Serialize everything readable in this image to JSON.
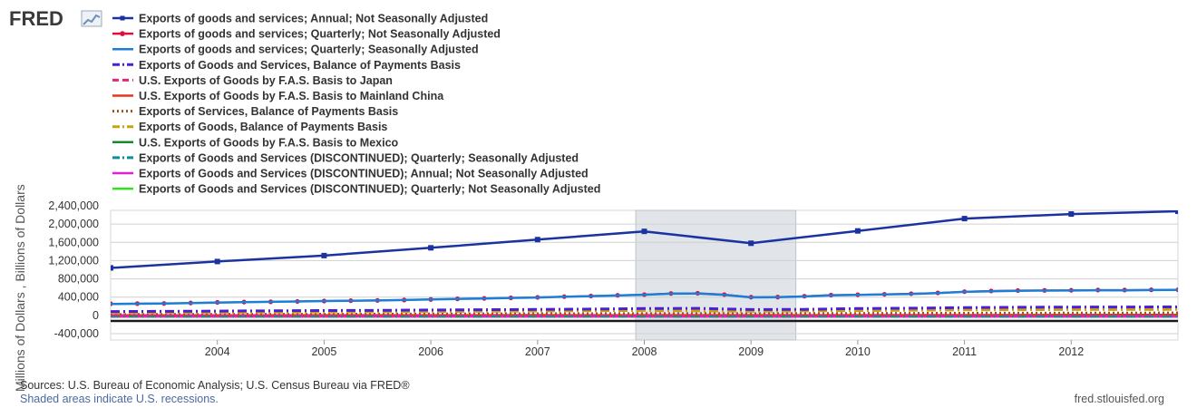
{
  "logo": {
    "text": "FRED"
  },
  "legend": [
    {
      "name": "Exports of goods and services; Annual; Not Seasonally Adjusted",
      "color": "#1a33a0",
      "style": "solid-square-marker"
    },
    {
      "name": "Exports of goods and services; Quarterly; Not Seasonally Adjusted",
      "color": "#e0103a",
      "style": "solid-circle-marker"
    },
    {
      "name": "Exports of goods and services; Quarterly; Seasonally Adjusted",
      "color": "#1c7ed6",
      "style": "solid"
    },
    {
      "name": "Exports of Goods and Services, Balance of Payments Basis",
      "color": "#4b1fd6",
      "style": "dash-dot"
    },
    {
      "name": "U.S. Exports of Goods by F.A.S. Basis to Japan",
      "color": "#e0287a",
      "style": "dash"
    },
    {
      "name": "U.S. Exports of Goods by F.A.S. Basis to Mainland China",
      "color": "#e8351c",
      "style": "solid"
    },
    {
      "name": "Exports of Services, Balance of Payments Basis",
      "color": "#a0521c",
      "style": "dot"
    },
    {
      "name": "Exports of Goods, Balance of Payments Basis",
      "color": "#c9a214",
      "style": "dash-dot"
    },
    {
      "name": "U.S. Exports of Goods by F.A.S. Basis to Mexico",
      "color": "#138a2e",
      "style": "solid"
    },
    {
      "name": "Exports of Goods and Services (DISCONTINUED); Quarterly; Seasonally Adjusted",
      "color": "#0a8f9e",
      "style": "dash-dot"
    },
    {
      "name": "Exports of Goods and Services (DISCONTINUED); Annual; Not Seasonally Adjusted",
      "color": "#e020d6",
      "style": "solid"
    },
    {
      "name": "Exports of Goods and Services (DISCONTINUED); Quarterly; Not Seasonally Adjusted",
      "color": "#33e01c",
      "style": "solid"
    }
  ],
  "chart_data": {
    "type": "line",
    "ylabel": "Millions of Dollars , Billions of Dollars",
    "ylim": [
      -400000,
      2400000
    ],
    "yticks": [
      -400000,
      0,
      400000,
      800000,
      1200000,
      1600000,
      2000000,
      2400000
    ],
    "ytick_labels": [
      "-400,000",
      "0",
      "400,000",
      "800,000",
      "1,200,000",
      "1,600,000",
      "2,000,000",
      "2,400,000"
    ],
    "xlim": [
      2003.0,
      2013.0
    ],
    "xticks": [
      2004,
      2005,
      2006,
      2007,
      2008,
      2009,
      2010,
      2011,
      2012
    ],
    "xtick_labels": [
      "2004",
      "2005",
      "2006",
      "2007",
      "2008",
      "2009",
      "2010",
      "2011",
      "2012"
    ],
    "grid": true,
    "recessions": [
      [
        2007.92,
        2009.42
      ]
    ],
    "series": [
      {
        "name": "Exports of goods and services; Annual; Not Seasonally Adjusted",
        "color": "#1a33a0",
        "width": 2.5,
        "marker": "square",
        "dash": "",
        "x": [
          2003,
          2004,
          2005,
          2006,
          2007,
          2008,
          2009,
          2010,
          2011,
          2012,
          2013
        ],
        "y": [
          1040000,
          1180000,
          1310000,
          1480000,
          1660000,
          1840000,
          1580000,
          1850000,
          2120000,
          2220000,
          2280000
        ]
      },
      {
        "name": "Exports of goods and services; Quarterly; Not Seasonally Adjusted",
        "color": "#e0103a",
        "width": 2,
        "marker": "circle",
        "dash": "",
        "x": [
          2003.0,
          2003.25,
          2003.5,
          2003.75,
          2004.0,
          2004.25,
          2004.5,
          2004.75,
          2005.0,
          2005.25,
          2005.5,
          2005.75,
          2006.0,
          2006.25,
          2006.5,
          2006.75,
          2007.0,
          2007.25,
          2007.5,
          2007.75,
          2008.0,
          2008.25,
          2008.5,
          2008.75,
          2009.0,
          2009.25,
          2009.5,
          2009.75,
          2010.0,
          2010.25,
          2010.5,
          2010.75,
          2011.0,
          2011.25,
          2011.5,
          2011.75,
          2012.0,
          2012.25,
          2012.5,
          2012.75,
          2013.0
        ],
        "y": [
          255000,
          258000,
          262000,
          272000,
          285000,
          292000,
          298000,
          306000,
          315000,
          322000,
          328000,
          337000,
          350000,
          362000,
          372000,
          384000,
          395000,
          410000,
          425000,
          440000,
          455000,
          480000,
          485000,
          455000,
          400000,
          402000,
          420000,
          445000,
          452000,
          462000,
          475000,
          492000,
          520000,
          535000,
          545000,
          548000,
          550000,
          556000,
          555000,
          560000,
          562000
        ]
      },
      {
        "name": "Exports of goods and services; Quarterly; Seasonally Adjusted",
        "color": "#1c7ed6",
        "width": 2.5,
        "marker": "",
        "dash": "",
        "x": [
          2003.0,
          2003.25,
          2003.5,
          2003.75,
          2004.0,
          2004.25,
          2004.5,
          2004.75,
          2005.0,
          2005.25,
          2005.5,
          2005.75,
          2006.0,
          2006.25,
          2006.5,
          2006.75,
          2007.0,
          2007.25,
          2007.5,
          2007.75,
          2008.0,
          2008.25,
          2008.5,
          2008.75,
          2009.0,
          2009.25,
          2009.5,
          2009.75,
          2010.0,
          2010.25,
          2010.5,
          2010.75,
          2011.0,
          2011.25,
          2011.5,
          2011.75,
          2012.0,
          2012.25,
          2012.5,
          2012.75,
          2013.0
        ],
        "y": [
          250000,
          255000,
          262000,
          270000,
          282000,
          290000,
          297000,
          305000,
          314000,
          320000,
          327000,
          336000,
          348000,
          360000,
          370000,
          382000,
          393000,
          408000,
          422000,
          437000,
          452000,
          475000,
          480000,
          450000,
          395000,
          398000,
          415000,
          440000,
          448000,
          458000,
          470000,
          488000,
          515000,
          530000,
          540000,
          543000,
          546000,
          552000,
          550000,
          556000,
          558000
        ]
      },
      {
        "name": "Exports of Goods and Services, Balance of Payments Basis",
        "color": "#4b1fd6",
        "width": 3,
        "marker": "",
        "dash": "10,4,2,4",
        "x": [
          2003.0,
          2003.5,
          2004.0,
          2004.5,
          2005.0,
          2005.5,
          2006.0,
          2006.5,
          2007.0,
          2007.5,
          2008.0,
          2008.5,
          2009.0,
          2009.5,
          2010.0,
          2010.5,
          2011.0,
          2011.5,
          2012.0,
          2012.5,
          2013.0
        ],
        "y": [
          85000,
          88000,
          95000,
          100000,
          106000,
          110000,
          118000,
          124000,
          130000,
          138000,
          150000,
          155000,
          128000,
          133000,
          150000,
          158000,
          170000,
          178000,
          182000,
          184000,
          186000
        ]
      },
      {
        "name": "U.S. Exports of Goods by F.A.S. Basis to Japan",
        "color": "#e0287a",
        "width": 2,
        "marker": "",
        "dash": "8,4",
        "x": [
          2003,
          2005,
          2007,
          2009,
          2011,
          2013
        ],
        "y": [
          4500,
          4600,
          5000,
          4000,
          5500,
          5600
        ]
      },
      {
        "name": "U.S. Exports of Goods by F.A.S. Basis to Mainland China",
        "color": "#e8351c",
        "width": 2,
        "marker": "",
        "dash": "",
        "x": [
          2003,
          2005,
          2007,
          2009,
          2011,
          2013
        ],
        "y": [
          2500,
          3500,
          5000,
          6000,
          8000,
          9000
        ]
      },
      {
        "name": "Exports of Services, Balance of Payments Basis",
        "color": "#a0521c",
        "width": 2.5,
        "marker": "",
        "dash": "2,3",
        "x": [
          2003.0,
          2005.0,
          2007.0,
          2008.0,
          2009.0,
          2011.0,
          2013.0
        ],
        "y": [
          25000,
          30000,
          40000,
          45000,
          42000,
          52000,
          58000
        ]
      },
      {
        "name": "Exports of Goods, Balance of Payments Basis",
        "color": "#c9a214",
        "width": 3,
        "marker": "",
        "dash": "10,4,2,4",
        "x": [
          2003.0,
          2004.0,
          2005.0,
          2006.0,
          2007.0,
          2008.0,
          2009.0,
          2010.0,
          2011.0,
          2012.0,
          2013.0
        ],
        "y": [
          60000,
          68000,
          75000,
          85000,
          95000,
          108000,
          88000,
          105000,
          120000,
          128000,
          130000
        ]
      },
      {
        "name": "U.S. Exports of Goods by F.A.S. Basis to Mexico",
        "color": "#138a2e",
        "width": 2,
        "marker": "",
        "dash": "",
        "x": [
          2003,
          2005,
          2007,
          2009,
          2011,
          2013
        ],
        "y": [
          8000,
          9000,
          11000,
          9000,
          14000,
          18000
        ]
      },
      {
        "name": "Exports of Goods and Services (DISCONTINUED); Quarterly; Seasonally Adjusted",
        "color": "#0a8f9e",
        "width": 2,
        "marker": "",
        "dash": "10,4,2,4",
        "x": [
          2003,
          2013
        ],
        "y": [
          -30000,
          -30000
        ]
      },
      {
        "name": "Exports of Goods and Services (DISCONTINUED); Annual; Not Seasonally Adjusted",
        "color": "#e020d6",
        "width": 2,
        "marker": "",
        "dash": "",
        "x": [
          2003,
          2013
        ],
        "y": [
          -30000,
          -30000
        ]
      },
      {
        "name": "Exports of Goods and Services (DISCONTINUED); Quarterly; Not Seasonally Adjusted",
        "color": "#33e01c",
        "width": 2,
        "marker": "",
        "dash": "",
        "x": [
          2003,
          2013
        ],
        "y": [
          -30000,
          -30000
        ]
      }
    ]
  },
  "footer": {
    "sources": "Sources: U.S. Bureau of Economic Analysis; U.S. Census Bureau via FRED®",
    "shaded_note": "Shaded areas indicate U.S. recessions.",
    "url": "fred.stlouisfed.org"
  }
}
